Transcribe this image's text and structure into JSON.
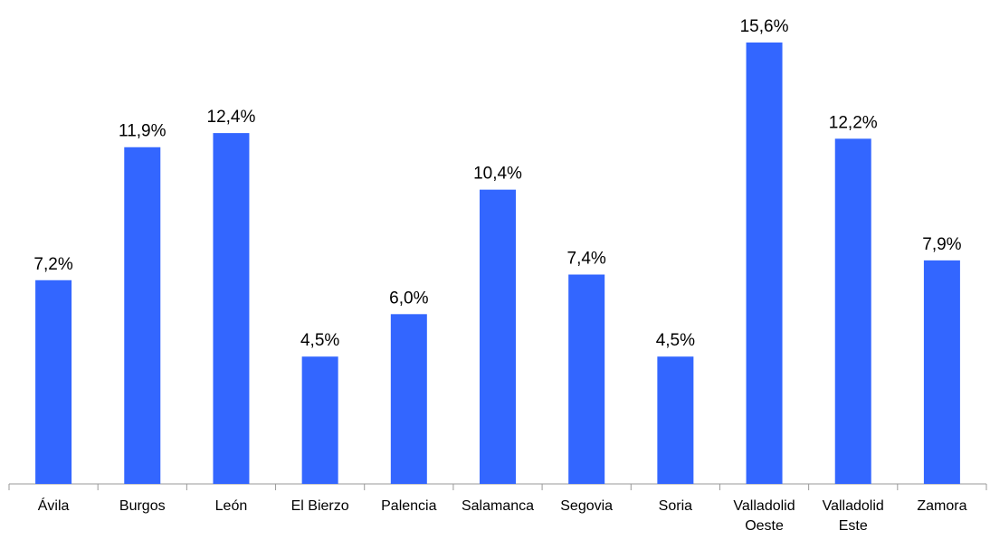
{
  "chart_data": {
    "type": "bar",
    "categories": [
      "Ávila",
      "Burgos",
      "León",
      "El Bierzo",
      "Palencia",
      "Salamanca",
      "Segovia",
      "Soria",
      "Valladolid Oeste",
      "Valladolid Este",
      "Zamora"
    ],
    "values": [
      7.2,
      11.9,
      12.4,
      4.5,
      6.0,
      10.4,
      7.4,
      4.5,
      15.6,
      12.2,
      7.9
    ],
    "value_labels": [
      "7,2%",
      "11,9%",
      "12,4%",
      "4,5%",
      "6,0%",
      "10,4%",
      "7,4%",
      "4,5%",
      "15,6%",
      "12,2%",
      "7,9%"
    ],
    "color": "#3366ff"
  }
}
